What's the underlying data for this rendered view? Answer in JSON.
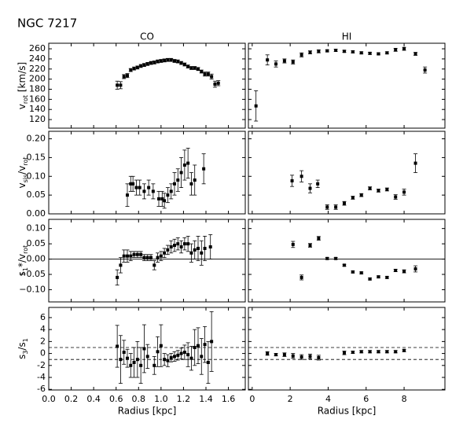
{
  "title": "NGC 7217",
  "chart_data": [
    {
      "type": "scatter",
      "title": "CO",
      "ylabel": [
        "v",
        "rot",
        " [km/s]"
      ],
      "xlim": [
        0,
        1.75
      ],
      "ylim": [
        103,
        271
      ],
      "yticks": [
        120,
        140,
        160,
        180,
        200,
        220,
        240,
        260
      ],
      "x": [
        0.61,
        0.64,
        0.67,
        0.7,
        0.73,
        0.76,
        0.79,
        0.82,
        0.85,
        0.88,
        0.91,
        0.94,
        0.97,
        1.0,
        1.03,
        1.06,
        1.09,
        1.12,
        1.15,
        1.18,
        1.21,
        1.24,
        1.27,
        1.3,
        1.33,
        1.36,
        1.39,
        1.42,
        1.45,
        1.48,
        1.51
      ],
      "values": [
        188,
        188,
        205,
        207,
        218,
        221,
        223,
        226,
        228,
        230,
        232,
        233,
        235,
        236,
        237,
        238,
        238,
        236,
        235,
        232,
        229,
        225,
        222,
        222,
        220,
        215,
        210,
        210,
        205,
        190,
        192
      ],
      "errors": [
        8,
        7,
        4,
        4,
        3,
        3,
        3,
        3,
        3,
        3,
        3,
        3,
        3,
        3,
        3,
        3,
        3,
        3,
        3,
        3,
        3,
        3,
        3,
        3,
        3,
        3,
        4,
        4,
        5,
        6,
        5
      ]
    },
    {
      "type": "scatter",
      "title": "HI",
      "xlim": [
        -0.2,
        10.15
      ],
      "ylim": [
        103,
        271
      ],
      "x": [
        0.2,
        0.8,
        1.25,
        1.7,
        2.15,
        2.6,
        3.05,
        3.5,
        3.95,
        4.4,
        4.85,
        5.3,
        5.75,
        6.2,
        6.65,
        7.1,
        7.55,
        8.0,
        8.6,
        9.1
      ],
      "values": [
        147,
        238,
        230,
        236,
        234,
        248,
        253,
        255,
        256,
        257,
        255,
        254,
        252,
        251,
        250,
        252,
        258,
        260,
        250,
        218
      ],
      "errors": [
        30,
        10,
        6,
        4,
        4,
        4,
        3,
        3,
        2,
        2,
        2,
        2,
        2,
        2,
        2,
        2,
        3,
        3,
        3,
        6
      ]
    },
    {
      "type": "scatter",
      "ylabel": [
        "v",
        "sis",
        "/v",
        "rot"
      ],
      "xlim": [
        0,
        1.75
      ],
      "ylim": [
        0,
        0.22
      ],
      "yticks": [
        {
          "value": 0,
          "label": "0.00"
        },
        {
          "value": 0.05,
          "label": "0.05"
        },
        {
          "value": 0.1,
          "label": "0.10"
        },
        {
          "value": 0.15,
          "label": "0.15"
        },
        {
          "value": 0.2,
          "label": "0.20"
        }
      ],
      "x": [
        0.7,
        0.73,
        0.75,
        0.78,
        0.81,
        0.85,
        0.89,
        0.93,
        0.98,
        1.01,
        1.03,
        1.06,
        1.09,
        1.12,
        1.15,
        1.18,
        1.21,
        1.24,
        1.27,
        1.3,
        1.38
      ],
      "values": [
        0.05,
        0.08,
        0.08,
        0.07,
        0.07,
        0.06,
        0.07,
        0.06,
        0.04,
        0.04,
        0.035,
        0.05,
        0.06,
        0.08,
        0.09,
        0.11,
        0.13,
        0.135,
        0.08,
        0.09,
        0.12
      ],
      "errors": [
        0.03,
        0.02,
        0.02,
        0.02,
        0.02,
        0.02,
        0.02,
        0.02,
        0.02,
        0.02,
        0.02,
        0.02,
        0.02,
        0.03,
        0.03,
        0.04,
        0.04,
        0.04,
        0.03,
        0.04,
        0.04
      ]
    },
    {
      "type": "scatter",
      "xlim": [
        -0.2,
        10.15
      ],
      "ylim": [
        0,
        0.22
      ],
      "x": [
        2.1,
        2.6,
        3.05,
        3.45,
        3.95,
        4.4,
        4.85,
        5.3,
        5.75,
        6.2,
        6.65,
        7.1,
        7.55,
        8.0,
        8.6
      ],
      "values": [
        0.088,
        0.1,
        0.068,
        0.08,
        0.018,
        0.018,
        0.028,
        0.043,
        0.05,
        0.068,
        0.062,
        0.065,
        0.045,
        0.058,
        0.135
      ],
      "errors": [
        0.015,
        0.015,
        0.012,
        0.01,
        0.006,
        0.006,
        0.005,
        0.004,
        0.004,
        0.004,
        0.004,
        0.004,
        0.006,
        0.008,
        0.025
      ]
    },
    {
      "type": "scatter",
      "ylabel": [
        "s",
        "1",
        "*/v",
        "rot"
      ],
      "xlim": [
        0,
        1.75
      ],
      "ylim": [
        -0.14,
        0.13
      ],
      "hlines": [
        0
      ],
      "hline_dash": false,
      "yticks": [
        {
          "value": -0.1,
          "label": "−0.10"
        },
        {
          "value": -0.05,
          "label": "−0.05"
        },
        {
          "value": 0,
          "label": "0.00"
        },
        {
          "value": 0.05,
          "label": "0.05"
        },
        {
          "value": 0.1,
          "label": "0.10"
        }
      ],
      "x": [
        0.61,
        0.64,
        0.67,
        0.7,
        0.73,
        0.76,
        0.79,
        0.82,
        0.85,
        0.88,
        0.91,
        0.94,
        0.97,
        1.0,
        1.03,
        1.06,
        1.09,
        1.12,
        1.15,
        1.18,
        1.21,
        1.24,
        1.27,
        1.3,
        1.33,
        1.36,
        1.39,
        1.44
      ],
      "values": [
        -0.06,
        -0.02,
        0.01,
        0.01,
        0.01,
        0.015,
        0.015,
        0.015,
        0.005,
        0.005,
        0.005,
        -0.02,
        0.005,
        0.01,
        0.02,
        0.03,
        0.04,
        0.045,
        0.05,
        0.04,
        0.05,
        0.05,
        0.02,
        0.03,
        0.035,
        0.02,
        0.035,
        0.04
      ],
      "errors": [
        0.025,
        0.025,
        0.02,
        0.02,
        0.015,
        0.01,
        0.01,
        0.01,
        0.01,
        0.01,
        0.01,
        0.015,
        0.015,
        0.015,
        0.015,
        0.015,
        0.02,
        0.02,
        0.02,
        0.02,
        0.02,
        0.025,
        0.03,
        0.03,
        0.04,
        0.04,
        0.04,
        0.04
      ]
    },
    {
      "type": "scatter",
      "xlim": [
        -0.2,
        10.15
      ],
      "ylim": [
        -0.14,
        0.13
      ],
      "hlines": [
        0
      ],
      "hline_dash": false,
      "x": [
        2.15,
        2.6,
        3.05,
        3.5,
        3.95,
        4.4,
        4.85,
        5.3,
        5.75,
        6.2,
        6.65,
        7.1,
        7.55,
        8.0,
        8.6
      ],
      "values": [
        0.048,
        -0.06,
        0.045,
        0.068,
        0.002,
        0.002,
        -0.02,
        -0.042,
        -0.045,
        -0.065,
        -0.058,
        -0.06,
        -0.037,
        -0.04,
        -0.032
      ],
      "errors": [
        0.01,
        0.008,
        0.006,
        0.006,
        0.003,
        0.003,
        0.003,
        0.003,
        0.003,
        0.003,
        0.003,
        0.003,
        0.004,
        0.005,
        0.01
      ]
    },
    {
      "type": "scatter",
      "ylabel": [
        "s",
        "3",
        "/s",
        "1"
      ],
      "xlabel": "Radius [kpc]",
      "xlim": [
        0,
        1.75
      ],
      "ylim": [
        -6.1,
        7.7
      ],
      "hlines": [
        -1,
        1
      ],
      "hline_dash": true,
      "yticks": [
        -6,
        -4,
        -2,
        0,
        2,
        4,
        6
      ],
      "xticks": [
        {
          "value": 0,
          "label": "0.0"
        },
        {
          "value": 0.2,
          "label": "0.2"
        },
        {
          "value": 0.4,
          "label": "0.4"
        },
        {
          "value": 0.6,
          "label": "0.6"
        },
        {
          "value": 0.8,
          "label": "0.8"
        },
        {
          "value": 1.0,
          "label": "1.0"
        },
        {
          "value": 1.2,
          "label": "1.2"
        },
        {
          "value": 1.4,
          "label": "1.4"
        },
        {
          "value": 1.6,
          "label": "1.6"
        }
      ],
      "x": [
        0.61,
        0.64,
        0.67,
        0.7,
        0.73,
        0.76,
        0.79,
        0.82,
        0.85,
        0.88,
        0.94,
        0.97,
        1.0,
        1.03,
        1.06,
        1.09,
        1.12,
        1.15,
        1.18,
        1.21,
        1.24,
        1.27,
        1.3,
        1.33,
        1.36,
        1.39,
        1.42,
        1.45
      ],
      "values": [
        1.2,
        -1,
        0.2,
        -0.8,
        -2,
        -1.5,
        -1,
        -2,
        0.8,
        -0.5,
        -2,
        0.3,
        1.3,
        -1,
        -1.2,
        -0.7,
        -0.5,
        -0.3,
        0,
        0.2,
        -0.2,
        -0.8,
        1,
        1.3,
        -0.5,
        1.5,
        -1.5,
        2
      ],
      "errors": [
        3.5,
        4,
        2,
        1.5,
        2,
        2.5,
        3,
        3,
        4,
        2,
        1.5,
        2.5,
        3.5,
        1,
        1,
        0.7,
        0.8,
        0.8,
        0.9,
        1.2,
        2,
        2,
        3,
        3,
        3,
        3,
        3.5,
        5
      ]
    },
    {
      "type": "scatter",
      "xlabel": "Radius [kpc]",
      "xlim": [
        -0.2,
        10.15
      ],
      "ylim": [
        -6.1,
        7.7
      ],
      "hlines": [
        -1,
        1
      ],
      "hline_dash": true,
      "xticks": [
        0,
        2,
        4,
        6,
        8
      ],
      "x": [
        0.8,
        1.25,
        1.7,
        2.15,
        2.6,
        3.05,
        3.5,
        4.85,
        5.3,
        5.75,
        6.2,
        6.65,
        7.1,
        7.55,
        8.0
      ],
      "values": [
        0,
        -0.2,
        -0.2,
        -0.4,
        -0.6,
        -0.5,
        -0.7,
        0.1,
        0.2,
        0.3,
        0.3,
        0.3,
        0.3,
        0.3,
        0.5
      ],
      "errors": [
        0.3,
        0.2,
        0.3,
        0.4,
        0.4,
        0.4,
        0.4,
        0.3,
        0.2,
        0.2,
        0.2,
        0.2,
        0.2,
        0.2,
        0.2
      ]
    }
  ]
}
